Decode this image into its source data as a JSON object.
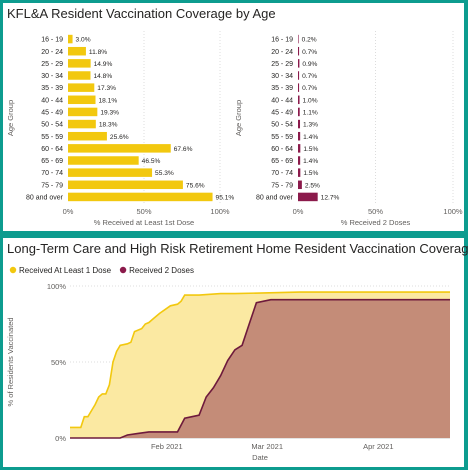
{
  "chart_data": [
    {
      "type": "bar",
      "title": "KFL&A Resident Vaccination Coverage by Age",
      "ylabel": "Age Group",
      "xlabel": "% Received at Least 1st Dose",
      "xlim": [
        0,
        100
      ],
      "xticks": [
        "0%",
        "50%",
        "100%"
      ],
      "color": "#f2c80f",
      "categories": [
        "16 - 19",
        "20 - 24",
        "25 - 29",
        "30 - 34",
        "35 - 39",
        "40 - 44",
        "45 - 49",
        "50 - 54",
        "55 - 59",
        "60 - 64",
        "65 - 69",
        "70 - 74",
        "75 - 79",
        "80 and over"
      ],
      "values": [
        3.0,
        11.8,
        14.9,
        14.8,
        17.3,
        18.1,
        19.3,
        18.3,
        25.6,
        67.6,
        46.5,
        55.3,
        75.6,
        95.1
      ],
      "labels": [
        "3.0%",
        "11.8%",
        "14.9%",
        "14.8%",
        "17.3%",
        "18.1%",
        "19.3%",
        "18.3%",
        "25.6%",
        "67.6%",
        "46.5%",
        "55.3%",
        "75.6%",
        "95.1%"
      ]
    },
    {
      "type": "bar",
      "ylabel": "Age Group",
      "xlabel": "% Received 2 Doses",
      "xlim": [
        0,
        100
      ],
      "xticks": [
        "0%",
        "50%",
        "100%"
      ],
      "color": "#8b1a4b",
      "categories": [
        "16 - 19",
        "20 - 24",
        "25 - 29",
        "30 - 34",
        "35 - 39",
        "40 - 44",
        "45 - 49",
        "50 - 54",
        "55 - 59",
        "60 - 64",
        "65 - 69",
        "70 - 74",
        "75 - 79",
        "80 and over"
      ],
      "values": [
        0.2,
        0.7,
        0.9,
        0.7,
        0.7,
        1.0,
        1.1,
        1.3,
        1.4,
        1.5,
        1.4,
        1.5,
        2.5,
        12.7
      ],
      "labels": [
        "0.2%",
        "0.7%",
        "0.9%",
        "0.7%",
        "0.7%",
        "1.0%",
        "1.1%",
        "1.3%",
        "1.4%",
        "1.5%",
        "1.4%",
        "1.5%",
        "2.5%",
        "12.7%"
      ]
    },
    {
      "type": "area",
      "title": "Long-Term Care and High Risk Retirement Home Resident Vaccination Coverage",
      "xlabel": "Date",
      "ylabel": "% of Residents Vaccinated",
      "ylim": [
        0,
        100
      ],
      "yticks": [
        {
          "v": 0,
          "label": "0%"
        },
        {
          "v": 50,
          "label": "50%"
        },
        {
          "v": 100,
          "label": "100%"
        }
      ],
      "xlim": [
        "2021-01-05",
        "2021-04-21"
      ],
      "xticks": [
        {
          "date": "2021-02-01",
          "label": "Feb 2021"
        },
        {
          "date": "2021-03-01",
          "label": "Mar 2021"
        },
        {
          "date": "2021-04-01",
          "label": "Apr 2021"
        }
      ],
      "legend_position": "top-left",
      "series": [
        {
          "name": "Received At Least 1 Dose",
          "color": "#f2c80f",
          "points": [
            [
              "2021-01-05",
              7
            ],
            [
              "2021-01-08",
              7
            ],
            [
              "2021-01-09",
              14
            ],
            [
              "2021-01-10",
              14
            ],
            [
              "2021-01-11",
              18
            ],
            [
              "2021-01-12",
              22
            ],
            [
              "2021-01-13",
              27
            ],
            [
              "2021-01-14",
              29
            ],
            [
              "2021-01-15",
              29
            ],
            [
              "2021-01-16",
              35
            ],
            [
              "2021-01-17",
              50
            ],
            [
              "2021-01-18",
              57
            ],
            [
              "2021-01-19",
              61
            ],
            [
              "2021-01-21",
              62
            ],
            [
              "2021-01-22",
              63
            ],
            [
              "2021-01-23",
              70
            ],
            [
              "2021-01-25",
              72
            ],
            [
              "2021-01-26",
              75
            ],
            [
              "2021-01-27",
              76
            ],
            [
              "2021-01-28",
              78
            ],
            [
              "2021-01-30",
              82
            ],
            [
              "2021-02-02",
              87
            ],
            [
              "2021-02-04",
              88
            ],
            [
              "2021-02-05",
              90
            ],
            [
              "2021-02-06",
              94
            ],
            [
              "2021-02-08",
              94
            ],
            [
              "2021-02-10",
              94
            ],
            [
              "2021-02-16",
              95
            ],
            [
              "2021-02-20",
              95
            ],
            [
              "2021-03-10",
              96
            ],
            [
              "2021-04-21",
              96
            ]
          ]
        },
        {
          "name": "Received 2 Doses",
          "color": "#8b1a4b",
          "points": [
            [
              "2021-01-05",
              0
            ],
            [
              "2021-01-19",
              0
            ],
            [
              "2021-01-21",
              2
            ],
            [
              "2021-01-24",
              3
            ],
            [
              "2021-01-27",
              4
            ],
            [
              "2021-01-31",
              4
            ],
            [
              "2021-02-04",
              4
            ],
            [
              "2021-02-06",
              13
            ],
            [
              "2021-02-08",
              14
            ],
            [
              "2021-02-10",
              15
            ],
            [
              "2021-02-12",
              27
            ],
            [
              "2021-02-14",
              33
            ],
            [
              "2021-02-16",
              41
            ],
            [
              "2021-02-18",
              51
            ],
            [
              "2021-02-20",
              58
            ],
            [
              "2021-02-22",
              61
            ],
            [
              "2021-02-24",
              75
            ],
            [
              "2021-02-26",
              89
            ],
            [
              "2021-02-28",
              90
            ],
            [
              "2021-03-02",
              91
            ],
            [
              "2021-04-21",
              91
            ]
          ]
        }
      ]
    }
  ]
}
